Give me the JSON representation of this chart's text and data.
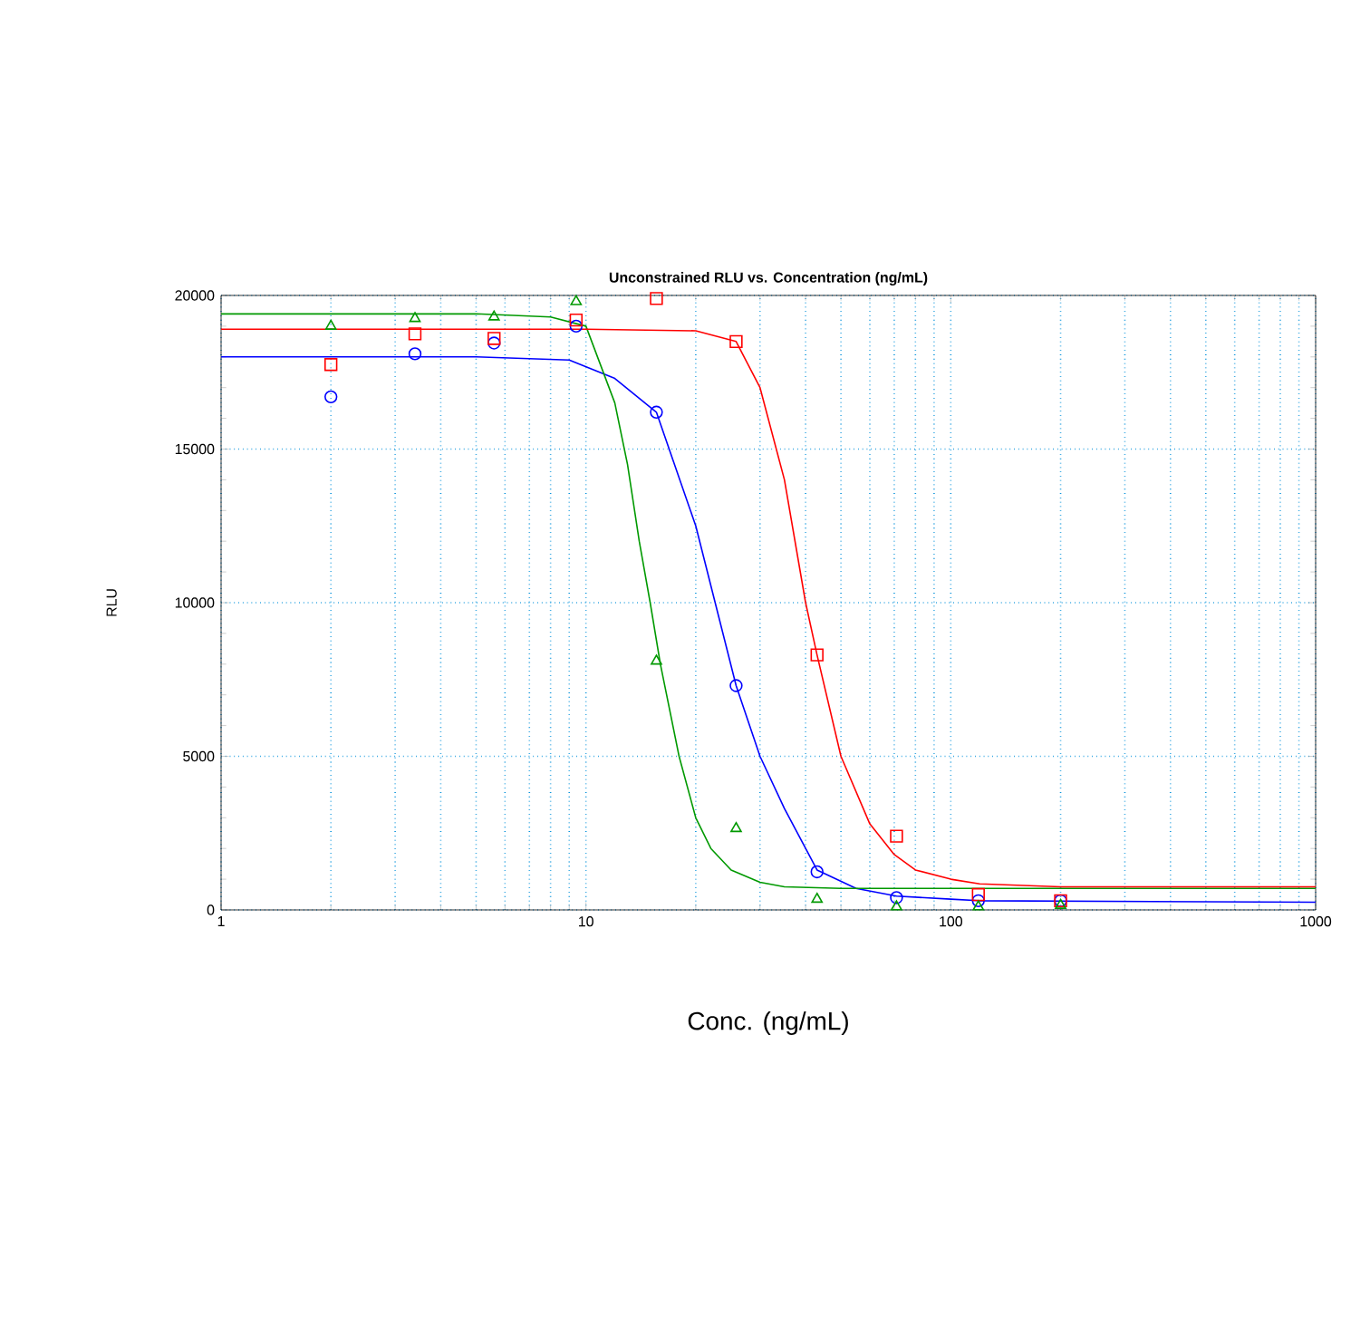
{
  "chart_data": {
    "type": "scatter",
    "title": "Unconstrained RLU vs. Concentration (ng/mL)",
    "xlabel": "Conc. (ng/mL)",
    "ylabel": "RLU",
    "log": "x",
    "grid": true,
    "xlim": [
      1,
      1000
    ],
    "xticks": [
      1,
      10,
      100,
      1000
    ],
    "ylim": [
      0,
      20000
    ],
    "yticks": [
      0,
      5000,
      10000,
      15000,
      20000
    ],
    "series": [
      {
        "color": "#0000ff",
        "marker": "circle",
        "x": [
          2,
          3.4,
          5.6,
          9.4,
          15.6,
          25.8,
          43,
          71,
          119,
          200
        ],
        "values": [
          16700,
          18100,
          18450,
          19000,
          16200,
          7300,
          1240,
          400,
          300,
          300
        ]
      },
      {
        "color": "#ff0000",
        "marker": "square",
        "x": [
          2,
          3.4,
          5.6,
          9.4,
          15.6,
          25.8,
          43,
          71,
          119,
          200
        ],
        "values": [
          17750,
          18750,
          18600,
          19200,
          19900,
          18500,
          8300,
          2400,
          500,
          300
        ]
      },
      {
        "color": "#009900",
        "marker": "triangle",
        "x": [
          2,
          3.4,
          5.6,
          9.4,
          15.6,
          25.8,
          43,
          71,
          119,
          200
        ],
        "values": [
          19000,
          19250,
          19300,
          19800,
          8100,
          2650,
          350,
          100,
          100,
          150
        ]
      },
      {
        "type": "line",
        "color": "#0000ff",
        "marker": "none",
        "x": [
          1,
          5,
          9,
          12,
          15.6,
          20,
          25.8,
          30,
          35,
          43,
          55,
          71,
          100,
          119,
          1000
        ],
        "values": [
          18000,
          18000,
          17900,
          17300,
          16200,
          12500,
          7300,
          5000,
          3300,
          1300,
          700,
          450,
          350,
          300,
          250
        ]
      },
      {
        "type": "line",
        "color": "#009900",
        "marker": "none",
        "x": [
          1,
          5,
          8,
          10,
          12,
          13,
          14,
          15,
          16,
          18,
          20,
          22,
          25,
          30,
          35,
          50,
          1000
        ],
        "values": [
          19400,
          19400,
          19300,
          19000,
          16500,
          14500,
          12000,
          10000,
          8000,
          5000,
          3000,
          2000,
          1300,
          900,
          750,
          700,
          700
        ]
      },
      {
        "type": "line",
        "color": "#ff0000",
        "marker": "none",
        "x": [
          1,
          10,
          20,
          25.8,
          30,
          35,
          40,
          43,
          50,
          60,
          70,
          80,
          100,
          120,
          200,
          1000
        ],
        "values": [
          18900,
          18900,
          18850,
          18500,
          17000,
          14000,
          10000,
          8300,
          5000,
          2800,
          1800,
          1300,
          1000,
          850,
          750,
          750
        ]
      }
    ]
  }
}
